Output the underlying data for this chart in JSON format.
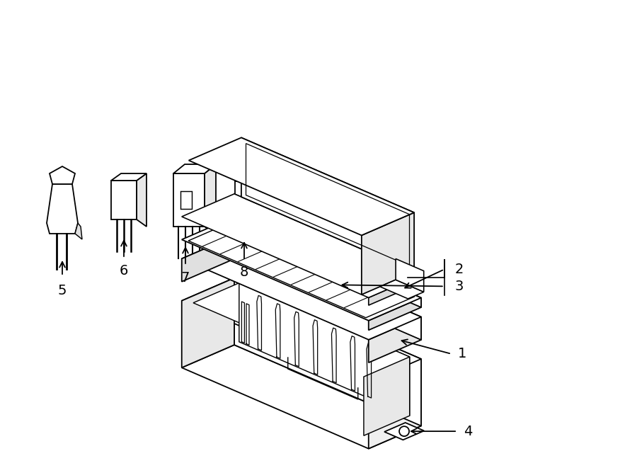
{
  "bg_color": "#ffffff",
  "line_color": "#000000",
  "lw": 1.3,
  "fig_width": 9.0,
  "fig_height": 6.61,
  "dpi": 100
}
